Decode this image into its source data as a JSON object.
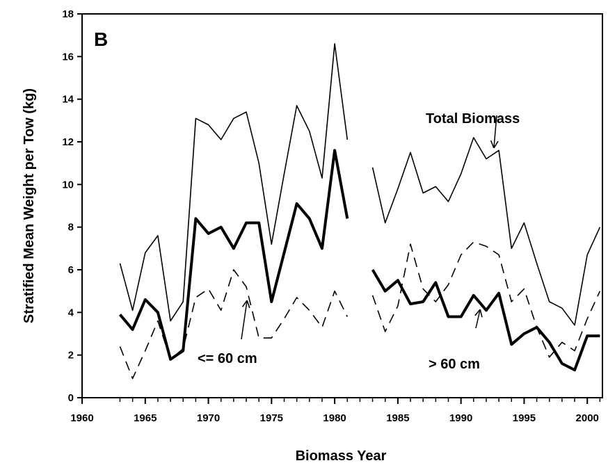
{
  "chart_data": {
    "type": "line",
    "panel_label": "B",
    "x_label": "Biomass Year",
    "y_label": "Stratified Mean Weight per Tow (kg)",
    "x": [
      1963,
      1964,
      1965,
      1966,
      1967,
      1968,
      1969,
      1970,
      1971,
      1972,
      1973,
      1974,
      1975,
      1976,
      1977,
      1978,
      1979,
      1980,
      1981,
      1982,
      1983,
      1984,
      1985,
      1986,
      1987,
      1988,
      1989,
      1990,
      1991,
      1992,
      1993,
      1994,
      1995,
      1996,
      1997,
      1998,
      1999,
      2000,
      2001
    ],
    "series": [
      {
        "name": "Total Biomass",
        "color": "#000000",
        "linestyle": "solid",
        "values": [
          6.3,
          4.1,
          6.8,
          7.6,
          3.6,
          4.5,
          13.1,
          12.8,
          12.1,
          13.1,
          13.4,
          11.0,
          7.2,
          10.5,
          13.7,
          12.5,
          10.3,
          16.6,
          12.1,
          null,
          10.8,
          8.2,
          9.8,
          11.5,
          9.6,
          9.9,
          9.2,
          10.5,
          12.2,
          11.2,
          11.6,
          7.0,
          8.2,
          6.3,
          4.5,
          4.2,
          3.4,
          6.7,
          8.0
        ]
      },
      {
        "name": "> 60 cm",
        "color": "#000000",
        "linestyle": "bold",
        "values": [
          3.9,
          3.2,
          4.6,
          4.0,
          1.8,
          2.2,
          8.4,
          7.7,
          8.0,
          7.0,
          8.2,
          8.2,
          4.5,
          6.8,
          9.1,
          8.4,
          7.0,
          11.6,
          8.4,
          null,
          6.0,
          5.0,
          5.5,
          4.4,
          4.5,
          5.4,
          3.8,
          3.8,
          4.8,
          4.1,
          4.9,
          2.5,
          3.0,
          3.3,
          2.6,
          1.6,
          1.3,
          2.9,
          2.9
        ]
      },
      {
        "name": "<= 60 cm",
        "color": "#000000",
        "linestyle": "dashed",
        "values": [
          2.4,
          0.9,
          2.2,
          3.6,
          1.8,
          2.3,
          4.7,
          5.1,
          4.1,
          6.0,
          5.2,
          2.8,
          2.8,
          3.7,
          4.7,
          4.1,
          3.3,
          5.0,
          3.8,
          null,
          4.8,
          3.1,
          4.3,
          7.2,
          5.1,
          4.5,
          5.3,
          6.7,
          7.3,
          7.1,
          6.7,
          4.5,
          5.1,
          3.3,
          1.9,
          2.6,
          2.2,
          3.7,
          5.0
        ]
      }
    ],
    "xlim": [
      1960,
      2001.2
    ],
    "xticks": [
      1960,
      1965,
      1970,
      1975,
      1980,
      1985,
      1990,
      1995,
      2000
    ],
    "ylim": [
      0,
      18
    ],
    "yticks": [
      0,
      2,
      4,
      6,
      8,
      10,
      12,
      14,
      16,
      18
    ],
    "grid": false
  }
}
